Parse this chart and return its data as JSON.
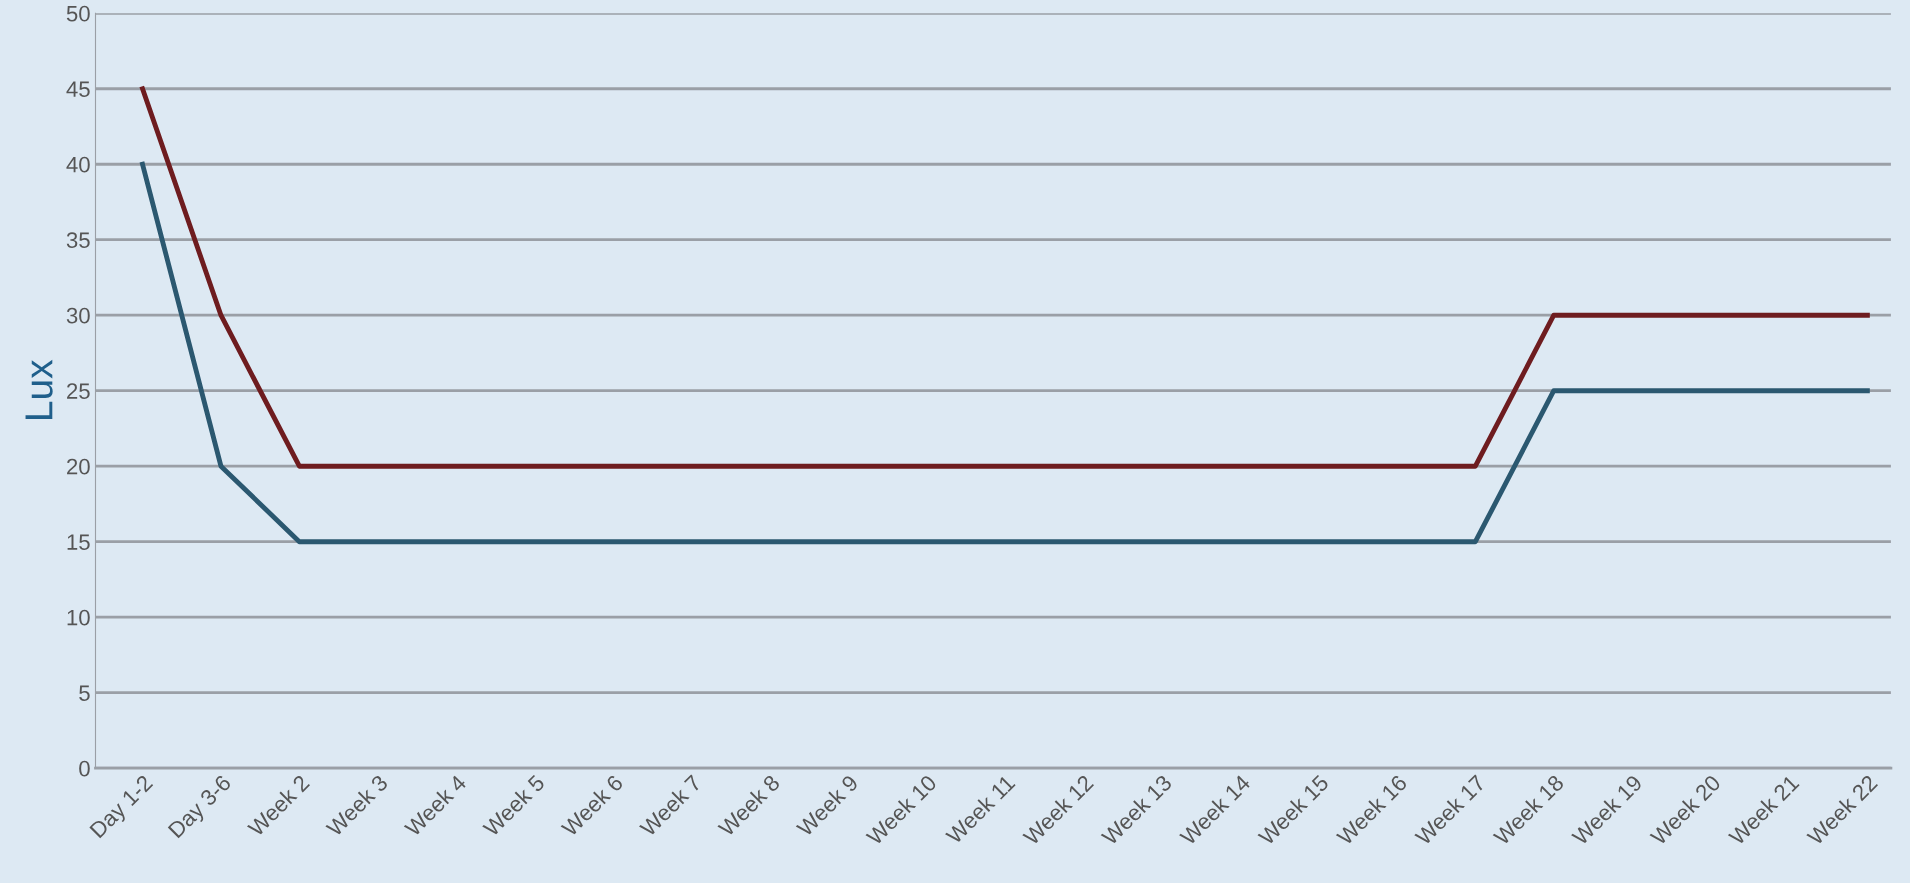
{
  "chart_data": {
    "type": "line",
    "ylabel": "Lux",
    "categories": [
      "Day 1-2",
      "Day 3-6",
      "Week 2",
      "Week 3",
      "Week 4",
      "Week 5",
      "Week 6",
      "Week 7",
      "Week 8",
      "Week 9",
      "Week 10",
      "Week 11",
      "Week 12",
      "Week 13",
      "Week 14",
      "Week 15",
      "Week 16",
      "Week 17",
      "Week 18",
      "Week 19",
      "Week 20",
      "Week 21",
      "Week 22"
    ],
    "series": [
      {
        "color": "#6e1c1f",
        "values": [
          45,
          30,
          20,
          20,
          20,
          20,
          20,
          20,
          20,
          20,
          20,
          20,
          20,
          20,
          20,
          20,
          20,
          20,
          30,
          30,
          30,
          30,
          30
        ]
      },
      {
        "color": "#2b5870",
        "values": [
          40,
          20,
          15,
          15,
          15,
          15,
          15,
          15,
          15,
          15,
          15,
          15,
          15,
          15,
          15,
          15,
          15,
          15,
          25,
          25,
          25,
          25,
          25
        ]
      }
    ],
    "ylim": [
      0,
      50
    ],
    "yticks": [
      0,
      5,
      10,
      15,
      20,
      25,
      30,
      35,
      40,
      45,
      50
    ],
    "grid": "y",
    "marker": "none",
    "line_style": "solid"
  }
}
